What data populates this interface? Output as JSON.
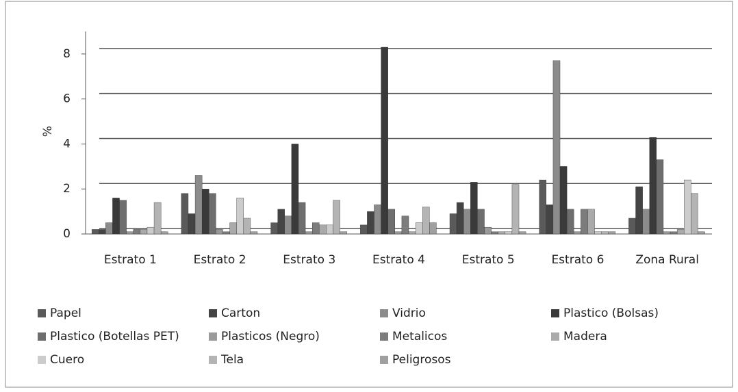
{
  "chart_data": {
    "type": "bar",
    "y_label": "%",
    "categories": [
      "Estrato 1",
      "Estrato 2",
      "Estrato 3",
      "Estrato 4",
      "Estrato 5",
      "Estrato 6",
      "Zona Rural"
    ],
    "series": [
      {
        "name": "Papel",
        "color": "#5a5a5a",
        "values": [
          0.2,
          1.8,
          0.5,
          0.4,
          0.9,
          2.4,
          0.7
        ]
      },
      {
        "name": "Carton",
        "color": "#444444",
        "values": [
          0.2,
          0.9,
          1.1,
          1.0,
          1.4,
          1.3,
          2.1
        ]
      },
      {
        "name": "Vidrio",
        "color": "#8c8c8c",
        "values": [
          0.5,
          2.6,
          0.8,
          1.3,
          1.1,
          7.7,
          1.1
        ]
      },
      {
        "name": "Plastico (Bolsas)",
        "color": "#3a3a3a",
        "values": [
          1.6,
          2.0,
          4.0,
          8.3,
          2.3,
          3.0,
          4.3
        ]
      },
      {
        "name": "Plastico (Botellas PET)",
        "color": "#6e6e6e",
        "values": [
          1.5,
          1.8,
          1.4,
          1.1,
          1.1,
          1.1,
          3.3
        ]
      },
      {
        "name": "Plasticos (Negro)",
        "color": "#9a9a9a",
        "values": [
          0.1,
          0.2,
          0.1,
          0.1,
          0.3,
          0.1,
          0.1
        ]
      },
      {
        "name": "Metalicos",
        "color": "#7c7c7c",
        "values": [
          0.2,
          0.1,
          0.5,
          0.8,
          0.1,
          1.1,
          0.1
        ]
      },
      {
        "name": "Madera",
        "color": "#aaaaaa",
        "values": [
          0.2,
          0.5,
          0.4,
          0.1,
          0.1,
          1.1,
          0.2
        ]
      },
      {
        "name": "Cuero",
        "color": "#cccccc",
        "values": [
          0.3,
          1.6,
          0.4,
          0.5,
          0.1,
          0.1,
          2.4
        ]
      },
      {
        "name": "Tela",
        "color": "#b4b4b4",
        "values": [
          1.4,
          0.7,
          1.5,
          1.2,
          2.2,
          0.1,
          1.8
        ]
      },
      {
        "name": "Peligrosos",
        "color": "#a0a0a0",
        "values": [
          0.1,
          0.1,
          0.1,
          0.5,
          0.1,
          0.1,
          0.1
        ]
      }
    ],
    "ylim": [
      0,
      9
    ],
    "yticks": [
      0,
      2,
      4,
      6,
      8
    ],
    "grid": true
  }
}
